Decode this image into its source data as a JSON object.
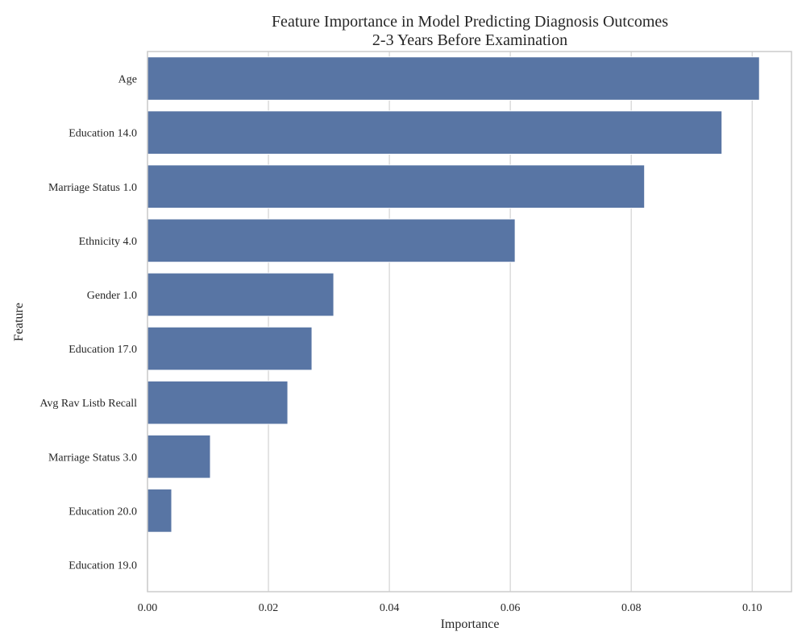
{
  "chart_data": {
    "type": "bar",
    "orientation": "horizontal",
    "title": [
      "Feature Importance in Model Predicting Diagnosis Outcomes",
      "2-3 Years Before Examination"
    ],
    "xlabel": "Importance",
    "ylabel": "Feature",
    "xlim": [
      0,
      0.1065
    ],
    "x_ticks": [
      0.0,
      0.02,
      0.04,
      0.06,
      0.08,
      0.1
    ],
    "x_tick_labels": [
      "0.00",
      "0.02",
      "0.04",
      "0.06",
      "0.08",
      "0.10"
    ],
    "categories": [
      "Age",
      "Education 14.0",
      "Marriage Status 1.0",
      "Ethnicity 4.0",
      "Gender 1.0",
      "Education 17.0",
      "Avg Rav Listb Recall",
      "Marriage Status 3.0",
      "Education 20.0",
      "Education 19.0"
    ],
    "values": [
      0.1012,
      0.095,
      0.0822,
      0.0608,
      0.0308,
      0.0272,
      0.0232,
      0.0104,
      0.004,
      0.0
    ],
    "grid": "vertical",
    "bar_color": "#5875a4",
    "bar_edge_color": "#ffffff",
    "grid_color": "#d3d3d3",
    "spine_color": "#cccccc"
  }
}
